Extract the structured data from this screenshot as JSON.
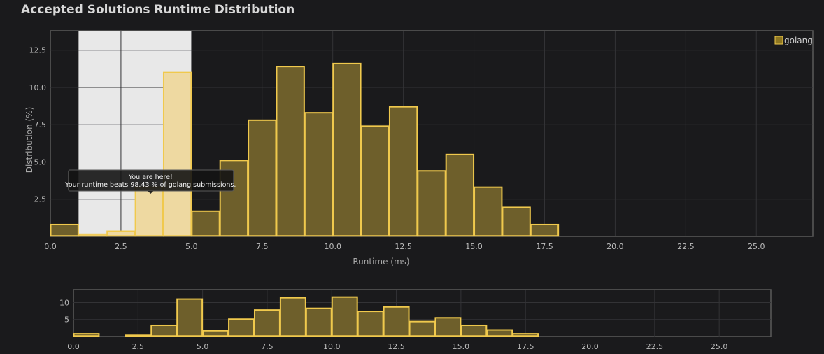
{
  "page": {
    "title": "Accepted Solutions Runtime Distribution"
  },
  "colors": {
    "background": "#1a1a1c",
    "bar_fill": "#6e5f2b",
    "bar_stroke": "#f0c94d",
    "highlight_fill": "#eed9a1",
    "highlight_band": "#e8e8e8",
    "grid": "#333336",
    "frame": "#5a5a5a",
    "legend_swatch": "#8d7621"
  },
  "tooltip": {
    "line1": "You are here!",
    "line2": "Your runtime beats 98.43 % of golang submissions."
  },
  "chart_data": [
    {
      "type": "bar",
      "role": "main",
      "xlabel": "Runtime (ms)",
      "ylabel": "Distribution (%)",
      "xlim": [
        0,
        27
      ],
      "ylim": [
        0,
        13.8
      ],
      "x_ticks": [
        0.0,
        2.5,
        5.0,
        7.5,
        10.0,
        12.5,
        15.0,
        17.5,
        20.0,
        22.5,
        25.0
      ],
      "x_tick_labels": [
        "0.0",
        "2.5",
        "5.0",
        "7.5",
        "10.0",
        "12.5",
        "15.0",
        "17.5",
        "20.0",
        "22.5",
        "25.0"
      ],
      "y_ticks": [
        2.5,
        5.0,
        7.5,
        10.0,
        12.5
      ],
      "y_tick_labels": [
        "2.5",
        "5.0",
        "7.5",
        "10.0",
        "12.5"
      ],
      "grid": true,
      "legend": "top-right",
      "highlight_range": [
        1,
        5
      ],
      "series": [
        {
          "name": "golang",
          "bin_width": 1,
          "bin_starts": [
            0,
            1,
            2,
            3,
            4,
            5,
            6,
            7,
            8,
            9,
            10,
            11,
            12,
            13,
            14,
            15,
            16,
            17
          ],
          "values": [
            0.8,
            0.15,
            0.35,
            3.3,
            11.0,
            1.7,
            5.1,
            7.8,
            11.4,
            8.3,
            11.6,
            7.4,
            8.7,
            4.4,
            5.5,
            3.3,
            1.95,
            0.8
          ]
        }
      ]
    },
    {
      "type": "bar",
      "role": "navigator",
      "xlim": [
        0,
        27
      ],
      "ylim": [
        0,
        13.8
      ],
      "x_ticks": [
        0.0,
        2.5,
        5.0,
        7.5,
        10.0,
        12.5,
        15.0,
        17.5,
        20.0,
        22.5,
        25.0
      ],
      "x_tick_labels": [
        "0.0",
        "2.5",
        "5.0",
        "7.5",
        "10.0",
        "12.5",
        "15.0",
        "17.5",
        "20.0",
        "22.5",
        "25.0"
      ],
      "y_ticks": [
        5,
        10
      ],
      "y_tick_labels": [
        "5",
        "10"
      ],
      "grid": true,
      "series": [
        {
          "bin_width": 1,
          "bin_starts": [
            0,
            1,
            2,
            3,
            4,
            5,
            6,
            7,
            8,
            9,
            10,
            11,
            12,
            13,
            14,
            15,
            16,
            17
          ],
          "values": [
            0.8,
            0.15,
            0.35,
            3.3,
            11.0,
            1.7,
            5.1,
            7.8,
            11.4,
            8.3,
            11.6,
            7.4,
            8.7,
            4.4,
            5.5,
            3.3,
            1.95,
            0.8
          ]
        }
      ]
    }
  ]
}
